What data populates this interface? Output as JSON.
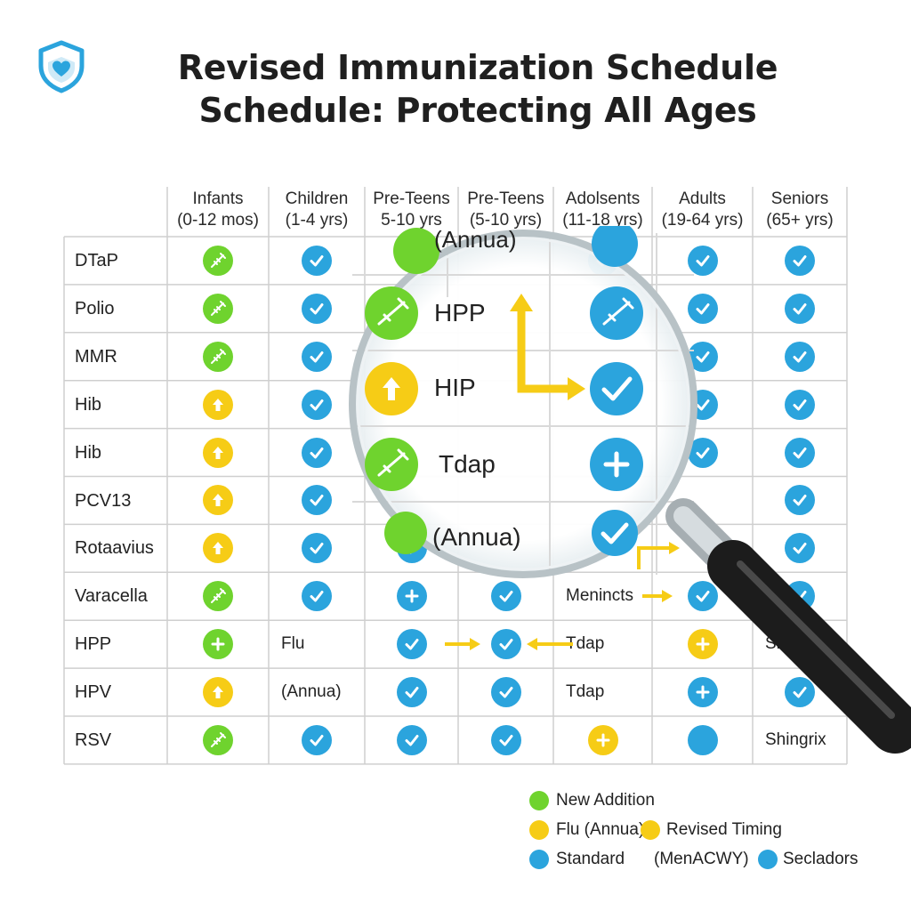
{
  "title_line1": "Revised Immunization Schedule",
  "title_line2": "Schedule: Protecting All Ages",
  "logo_icon": "shield-heart-icon",
  "colors": {
    "blue": "#2ba4dd",
    "green": "#6fd32e",
    "yellow": "#f6cc16"
  },
  "columns": [
    {
      "line1": "Infants",
      "line2": "(0-12 mos)"
    },
    {
      "line1": "Children",
      "line2": "(1-4 yrs)"
    },
    {
      "line1": "Pre-Teens",
      "line2": "5-10 yrs"
    },
    {
      "line1": "Pre-Teens",
      "line2": "(5-10 yrs)"
    },
    {
      "line1": "Adolsents",
      "line2": "(11-18 yrs)"
    },
    {
      "line1": "Adults",
      "line2": "(19-64 yrs)"
    },
    {
      "line1": "Seniors",
      "line2": "(65+ yrs)"
    }
  ],
  "rows": [
    {
      "label": "DTaP",
      "cells": [
        "green:syringe",
        "blue:check",
        "",
        "",
        "blue:check",
        "blue:check",
        "blue:check"
      ]
    },
    {
      "label": "Polio",
      "cells": [
        "green:syringe",
        "blue:check",
        "",
        "",
        "",
        "blue:check",
        "blue:check"
      ]
    },
    {
      "label": "MMR",
      "cells": [
        "green:syringe",
        "blue:check",
        "",
        "",
        "",
        "blue:check",
        "blue:check"
      ]
    },
    {
      "label": "Hib",
      "cells": [
        "yellow:arrow",
        "blue:check",
        "",
        "",
        "",
        "blue:check",
        "blue:check"
      ]
    },
    {
      "label": "Hib",
      "cells": [
        "yellow:arrow",
        "blue:check",
        "",
        "",
        "",
        "blue:check",
        "blue:check"
      ]
    },
    {
      "label": "PCV13",
      "cells": [
        "yellow:arrow",
        "blue:check",
        "",
        "",
        "",
        "",
        "blue:check"
      ]
    },
    {
      "label": "Rotaavius",
      "cells": [
        "yellow:arrow",
        "blue:check",
        "blue:check",
        "",
        "",
        "",
        "blue:check"
      ]
    },
    {
      "label": "Varacella",
      "cells": [
        "green:syringe",
        "blue:check",
        "blue:plus",
        "blue:check",
        "text:Menincts",
        "blue:check",
        "blue:check"
      ]
    },
    {
      "label": "HPP",
      "cells": [
        "green:plus",
        "text:Flu",
        "blue:check",
        "blue:check",
        "text:Tdap",
        "yellow:plus",
        "text:Shi"
      ]
    },
    {
      "label": "HPV",
      "cells": [
        "yellow:arrow",
        "text:(Annua)",
        "blue:check",
        "blue:check",
        "text:Tdap",
        "blue:plus",
        "blue:check"
      ]
    },
    {
      "label": "RSV",
      "cells": [
        "green:syringe",
        "blue:check",
        "blue:check",
        "blue:check",
        "yellow:plus",
        "blue:empty",
        "text:Shingrix"
      ]
    }
  ],
  "magnifier": {
    "top_text": "(Annua)",
    "items": [
      "HPP",
      "HIP",
      "Tdap"
    ],
    "bottom_text": "(Annua)"
  },
  "legend": {
    "new_addition": "New Addition",
    "flu_annual": "Flu (Annua)",
    "revised_timing": "Revised Timing",
    "standard": "Standard",
    "menacwy": "(MenACWY)",
    "secladors": "Secladors"
  }
}
